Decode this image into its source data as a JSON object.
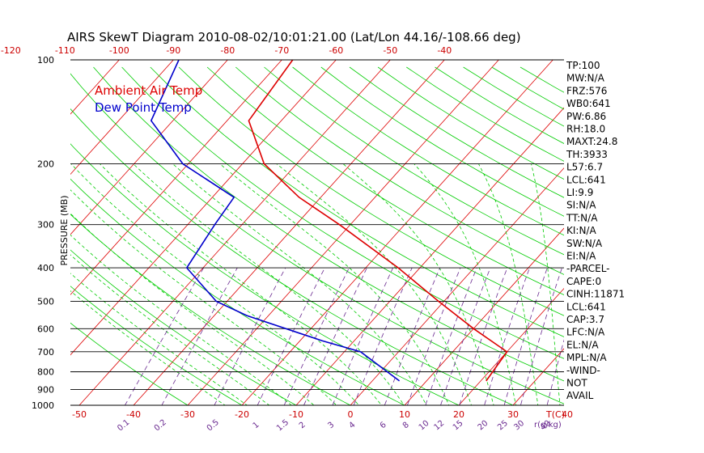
{
  "chart_data": {
    "type": "skew-t",
    "title": "AIRS SkewT Diagram 2010-08-02/10:01:21.00 (Lat/Lon 44.16/-108.66 deg)",
    "ylabel": "PRESSURE (MB)",
    "xlabel_unit": "T(C)",
    "mixing_ratio_unit": "r(g/kg)",
    "legend": [
      {
        "name": "Ambient Air Temp",
        "color": "#dd0000"
      },
      {
        "name": "Dew Point Temp",
        "color": "#0000cc"
      }
    ],
    "pressure_range": [
      1000,
      100
    ],
    "pressure_scale": "log",
    "pressure_ticks": [
      "100",
      "200",
      "300",
      "400",
      "500",
      "600",
      "700",
      "800",
      "900",
      "1000"
    ],
    "bottom_temp_ticks": [
      "-50",
      "-40",
      "-30",
      "-20",
      "-10",
      "0",
      "10",
      "20",
      "30",
      "40"
    ],
    "top_temp_ticks": [
      "-120",
      "-110",
      "-100",
      "-90",
      "-80",
      "-70",
      "-60",
      "-50",
      "-40"
    ],
    "mixing_ratio_ticks": [
      "0.1",
      "0.2",
      "0.5",
      "1",
      "1.5",
      "2",
      "3",
      "4",
      "6",
      "8",
      "10",
      "12",
      "15",
      "20",
      "25",
      "30",
      "40"
    ],
    "series": [
      {
        "name": "Ambient Air Temp",
        "color": "#dd0000",
        "points": [
          {
            "p": 850,
            "t": 21
          },
          {
            "p": 700,
            "t": 20
          },
          {
            "p": 600,
            "t": 10
          },
          {
            "p": 500,
            "t": -1
          },
          {
            "p": 400,
            "t": -14
          },
          {
            "p": 300,
            "t": -32
          },
          {
            "p": 250,
            "t": -44
          },
          {
            "p": 200,
            "t": -56
          },
          {
            "p": 150,
            "t": -66
          },
          {
            "p": 100,
            "t": -68
          }
        ]
      },
      {
        "name": "Dew Point Temp",
        "color": "#0000cc",
        "points": [
          {
            "p": 850,
            "t": 5
          },
          {
            "p": 700,
            "t": -7
          },
          {
            "p": 650,
            "t": -16
          },
          {
            "p": 550,
            "t": -34
          },
          {
            "p": 500,
            "t": -42
          },
          {
            "p": 400,
            "t": -53
          },
          {
            "p": 300,
            "t": -55
          },
          {
            "p": 250,
            "t": -56
          },
          {
            "p": 200,
            "t": -71
          },
          {
            "p": 150,
            "t": -84
          },
          {
            "p": 100,
            "t": -89
          }
        ]
      }
    ],
    "grid": true,
    "background_lines": {
      "isotherms": "#dd0000",
      "dry_adiabats": "#00cc00",
      "moist_adiabats": "#00cc00",
      "mixing_ratio": "#6a2a90",
      "isobars": "#000000"
    }
  },
  "indices": [
    "TP:100",
    "MW:N/A",
    "FRZ:576",
    "WB0:641",
    "PW:6.86",
    "RH:18.0",
    "MAXT:24.8",
    "TH:3933",
    "L57:6.7",
    "LCL:641",
    "LI:9.9",
    "SI:N/A",
    "TT:N/A",
    "KI:N/A",
    "SW:N/A",
    "EI:N/A",
    "-PARCEL-",
    "CAPE:0",
    "CINH:11871",
    "LCL:641",
    "CAP:3.7",
    "LFC:N/A",
    "EL:N/A",
    "MPL:N/A",
    "-WIND-",
    "NOT",
    "AVAIL"
  ]
}
